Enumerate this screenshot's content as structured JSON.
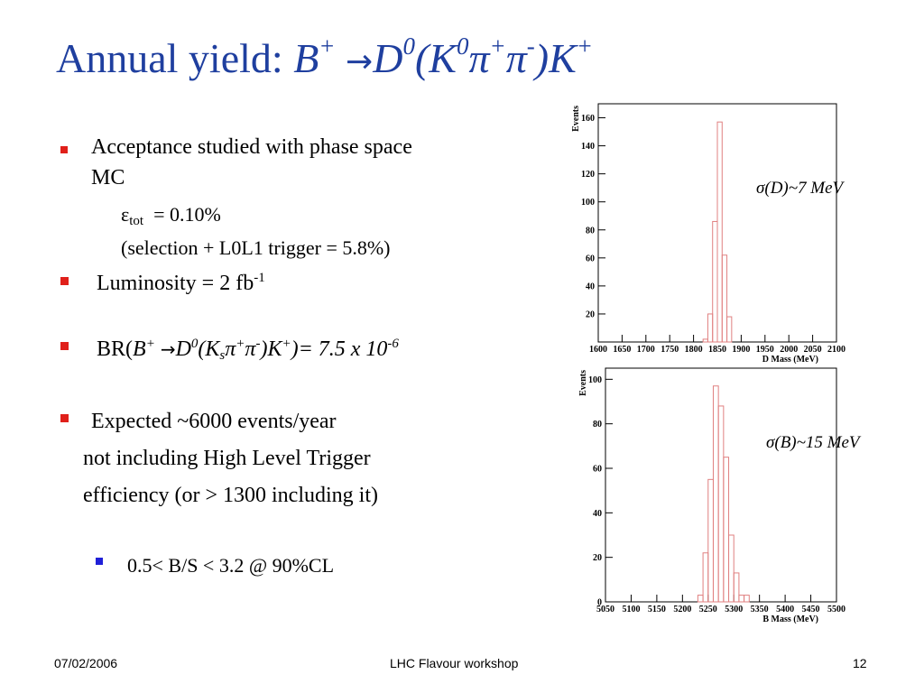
{
  "slide": {
    "title": {
      "prefix": "Annual yield: ",
      "b": "B",
      "b_sup": "+",
      "arrow": "→",
      "d": "D",
      "d_sup": "0",
      "open": "(K",
      "k_sup": "0",
      "pi1": "π",
      "pi1_sup": "+",
      "pi2": "π",
      "pi2_sup": "-",
      "close": ")K",
      "k2_sup": "+"
    },
    "bullets": {
      "acceptance_line1": "Acceptance studied with phase space",
      "acceptance_line2": "MC",
      "eps_sym": "ε",
      "eps_sub": "tot",
      "eps_val": "= 0.10%",
      "selection": "(selection +  L0L1 trigger = 5.8%)",
      "lumi": "Luminosity = 2 fb",
      "lumi_sup": "-1",
      "br_prefix": "BR(",
      "br_b": "B",
      "br_b_sup": "+",
      "br_arrow": "→",
      "br_d": "D",
      "br_d_sup": "0",
      "br_open": "(K",
      "br_s": "s",
      "br_pi1": "π",
      "br_pi1_sup": "+",
      "br_pi2": "π",
      "br_pi2_sup": "-",
      "br_close": ")K",
      "br_k_sup": "+",
      "br_value": ")= 7.5 x 10",
      "br_exp": "-6",
      "expected": "Expected ~6000 events/year",
      "not_including": "not including High Level Trigger",
      "efficiency": "efficiency (or  > 1300 including it)",
      "bs": "0.5< B/S < 3.2  @ 90%CL"
    },
    "footer": {
      "date": "07/02/2006",
      "event": "LHC Flavour workshop",
      "page": "12"
    }
  },
  "colors": {
    "title": "#1f3f9f",
    "bullet_red": "#e0201a",
    "bullet_blue": "#2020d8",
    "histogram": "#e08080"
  },
  "chart_data": [
    {
      "type": "histogram",
      "ylabel": "Events",
      "xlabel": "D Mass (MeV)",
      "annotation": "σ(D)~7 MeV",
      "xlim": [
        1600,
        2100
      ],
      "ylim": [
        0,
        170
      ],
      "xticks": [
        "1600",
        "1650",
        "1700",
        "1750",
        "1800",
        "1850",
        "1900",
        "1950",
        "2000",
        "2050",
        "2100"
      ],
      "yticks": [
        "20",
        "40",
        "60",
        "80",
        "100",
        "120",
        "140",
        "160"
      ],
      "bin_width": 10,
      "bins": [
        {
          "x": 1820,
          "y": 2
        },
        {
          "x": 1830,
          "y": 20
        },
        {
          "x": 1840,
          "y": 86
        },
        {
          "x": 1850,
          "y": 157
        },
        {
          "x": 1860,
          "y": 62
        },
        {
          "x": 1870,
          "y": 18
        },
        {
          "x": 1880,
          "y": 0
        }
      ]
    },
    {
      "type": "histogram",
      "ylabel": "Events",
      "xlabel": "B Mass (MeV)",
      "annotation": "σ(B)~15 MeV",
      "xlim": [
        5050,
        5500
      ],
      "ylim": [
        0,
        105
      ],
      "xticks": [
        "5050",
        "5100",
        "5150",
        "5200",
        "5250",
        "5300",
        "5350",
        "5400",
        "5450",
        "5500"
      ],
      "yticks": [
        "0",
        "20",
        "40",
        "60",
        "80",
        "100"
      ],
      "bin_width": 10,
      "bins": [
        {
          "x": 5230,
          "y": 3
        },
        {
          "x": 5240,
          "y": 22
        },
        {
          "x": 5250,
          "y": 55
        },
        {
          "x": 5260,
          "y": 97
        },
        {
          "x": 5270,
          "y": 88
        },
        {
          "x": 5280,
          "y": 65
        },
        {
          "x": 5290,
          "y": 30
        },
        {
          "x": 5300,
          "y": 13
        },
        {
          "x": 5310,
          "y": 3
        },
        {
          "x": 5320,
          "y": 3
        },
        {
          "x": 5330,
          "y": 0
        }
      ]
    }
  ]
}
